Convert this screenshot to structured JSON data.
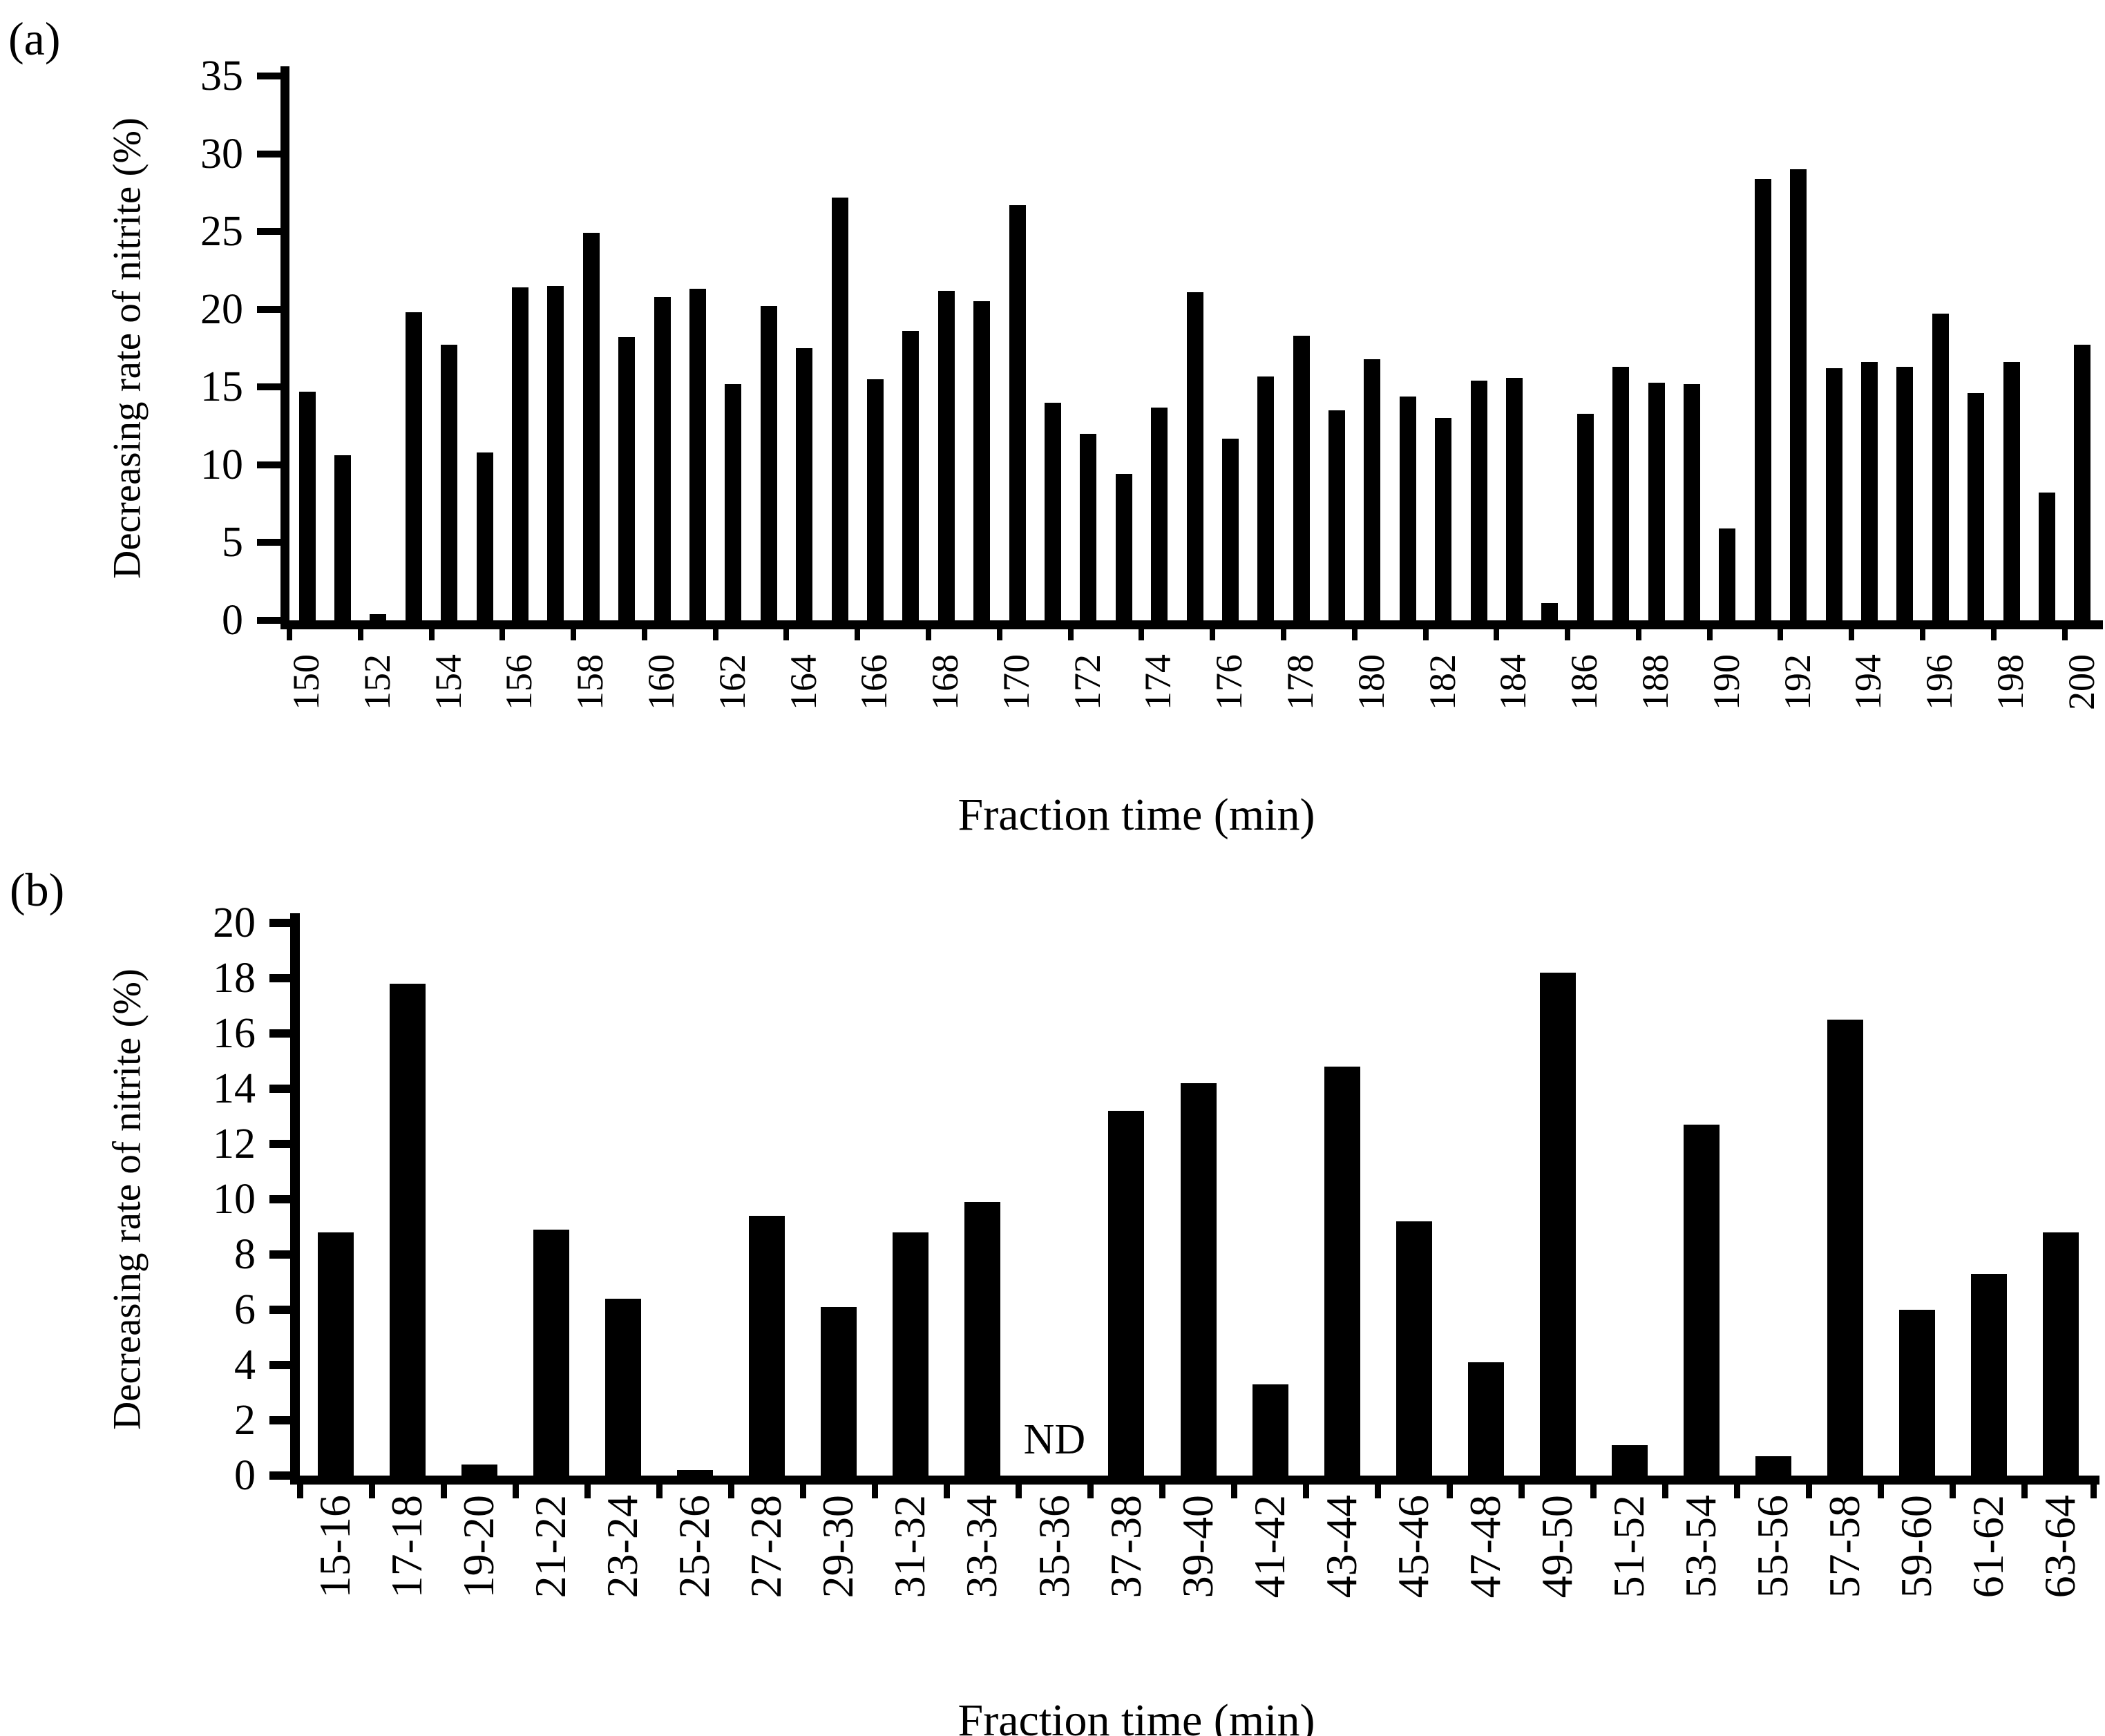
{
  "figure": {
    "background": "#ffffff",
    "ink_color": "#000000",
    "bar_color": "#000000"
  },
  "panels": [
    {
      "label": "(a)",
      "ylabel": "Decreasing rate of nitrite (%)",
      "xlabel": "Fraction time (min)"
    },
    {
      "label": "(b)",
      "ylabel": "Decreasing rate of nitrite (%)",
      "xlabel": "Fraction time (min)"
    }
  ],
  "chart_data": [
    {
      "type": "bar",
      "panel": "a",
      "title": "",
      "xlabel": "Fraction time (min)",
      "ylabel": "Decreasing rate of nitrite (%)",
      "ylim": [
        0,
        35
      ],
      "yticks": [
        0,
        5,
        10,
        15,
        20,
        25,
        30,
        35
      ],
      "grid": false,
      "legend": "none",
      "bar_color": "#000000",
      "xtick_label_every": 2,
      "categories": [
        "150",
        "151",
        "152",
        "153",
        "154",
        "155",
        "156",
        "157",
        "158",
        "159",
        "160",
        "161",
        "162",
        "163",
        "164",
        "165",
        "166",
        "167",
        "168",
        "169",
        "170",
        "171",
        "172",
        "173",
        "174",
        "175",
        "176",
        "177",
        "178",
        "179",
        "180",
        "181",
        "182",
        "183",
        "184",
        "185",
        "186",
        "187",
        "188",
        "189",
        "190",
        "191",
        "192",
        "193",
        "194",
        "195",
        "196",
        "197",
        "198",
        "199",
        "200"
      ],
      "values": [
        14.7,
        10.6,
        0.4,
        19.8,
        17.7,
        10.8,
        21.4,
        21.5,
        24.9,
        18.2,
        20.8,
        21.3,
        15.2,
        20.2,
        17.5,
        27.2,
        15.5,
        18.6,
        21.2,
        20.5,
        26.7,
        14.0,
        12.0,
        9.4,
        13.7,
        21.1,
        11.7,
        15.7,
        18.3,
        13.5,
        16.8,
        14.4,
        13.0,
        15.4,
        15.6,
        1.1,
        13.3,
        16.3,
        15.3,
        15.2,
        5.9,
        28.4,
        29.0,
        16.2,
        16.6,
        16.3,
        19.7,
        14.6,
        16.6,
        8.2,
        17.7
      ],
      "annotations": []
    },
    {
      "type": "bar",
      "panel": "b",
      "title": "",
      "xlabel": "Fraction time (min)",
      "ylabel": "Decreasing rate of nitrite (%)",
      "ylim": [
        0,
        20
      ],
      "yticks": [
        0,
        2,
        4,
        6,
        8,
        10,
        12,
        14,
        16,
        18,
        20
      ],
      "grid": false,
      "legend": "none",
      "bar_color": "#000000",
      "xtick_label_every": 1,
      "categories": [
        "15-16",
        "17-18",
        "19-20",
        "21-22",
        "23-24",
        "25-26",
        "27-28",
        "29-30",
        "31-32",
        "33-34",
        "35-36",
        "37-38",
        "39-40",
        "41-42",
        "43-44",
        "45-46",
        "47-48",
        "49-50",
        "51-52",
        "53-54",
        "55-56",
        "57-58",
        "59-60",
        "61-62",
        "63-64"
      ],
      "values": [
        8.8,
        17.8,
        0.4,
        8.9,
        6.4,
        0.2,
        9.4,
        6.1,
        8.8,
        9.9,
        null,
        13.2,
        14.2,
        3.3,
        14.8,
        9.2,
        4.1,
        18.2,
        1.1,
        12.7,
        0.7,
        16.5,
        6.0,
        7.3,
        8.8
      ],
      "annotations": [
        {
          "category": "35-36",
          "text": "ND"
        }
      ]
    }
  ]
}
